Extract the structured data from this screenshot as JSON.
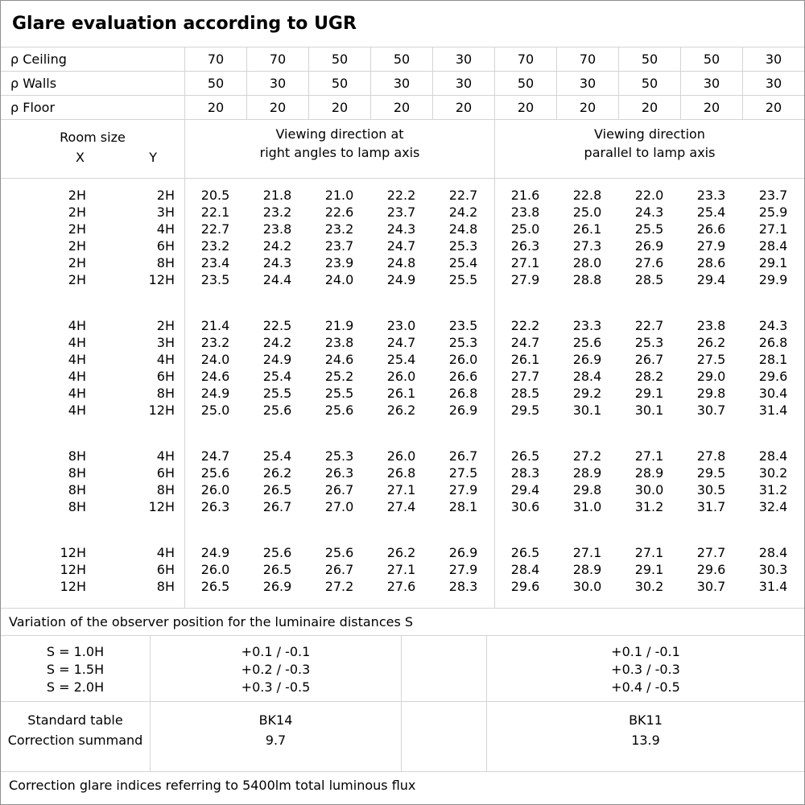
{
  "title": "Glare evaluation according to UGR",
  "params": {
    "rows": [
      {
        "label": "ρ Ceiling",
        "values": [
          "70",
          "70",
          "50",
          "50",
          "30",
          "70",
          "70",
          "50",
          "50",
          "30"
        ]
      },
      {
        "label": "ρ Walls",
        "values": [
          "50",
          "30",
          "50",
          "30",
          "30",
          "50",
          "30",
          "50",
          "30",
          "30"
        ]
      },
      {
        "label": "ρ Floor",
        "values": [
          "20",
          "20",
          "20",
          "20",
          "20",
          "20",
          "20",
          "20",
          "20",
          "20"
        ]
      }
    ]
  },
  "header": {
    "room_size_label": "Room size",
    "x_label": "X",
    "y_label": "Y",
    "section_left": [
      "Viewing direction at",
      "right angles to lamp axis"
    ],
    "section_right": [
      "Viewing direction",
      "parallel to lamp axis"
    ]
  },
  "chart_data": {
    "type": "table",
    "title": "Glare evaluation according to UGR",
    "row_key": [
      "Room size X",
      "Room size Y"
    ],
    "column_groups": [
      "Viewing direction at right angles to lamp axis",
      "Viewing direction parallel to lamp axis"
    ],
    "reflectances": {
      "ceiling": [
        "70",
        "70",
        "50",
        "50",
        "30"
      ],
      "walls": [
        "50",
        "30",
        "50",
        "30",
        "30"
      ],
      "floor": [
        "20",
        "20",
        "20",
        "20",
        "20"
      ]
    },
    "groups": [
      {
        "rows": [
          {
            "x": "2H",
            "y": "2H",
            "right_angle": [
              "20.5",
              "21.8",
              "21.0",
              "22.2",
              "22.7"
            ],
            "parallel": [
              "21.6",
              "22.8",
              "22.0",
              "23.3",
              "23.7"
            ]
          },
          {
            "x": "2H",
            "y": "3H",
            "right_angle": [
              "22.1",
              "23.2",
              "22.6",
              "23.7",
              "24.2"
            ],
            "parallel": [
              "23.8",
              "25.0",
              "24.3",
              "25.4",
              "25.9"
            ]
          },
          {
            "x": "2H",
            "y": "4H",
            "right_angle": [
              "22.7",
              "23.8",
              "23.2",
              "24.3",
              "24.8"
            ],
            "parallel": [
              "25.0",
              "26.1",
              "25.5",
              "26.6",
              "27.1"
            ]
          },
          {
            "x": "2H",
            "y": "6H",
            "right_angle": [
              "23.2",
              "24.2",
              "23.7",
              "24.7",
              "25.3"
            ],
            "parallel": [
              "26.3",
              "27.3",
              "26.9",
              "27.9",
              "28.4"
            ]
          },
          {
            "x": "2H",
            "y": "8H",
            "right_angle": [
              "23.4",
              "24.3",
              "23.9",
              "24.8",
              "25.4"
            ],
            "parallel": [
              "27.1",
              "28.0",
              "27.6",
              "28.6",
              "29.1"
            ]
          },
          {
            "x": "2H",
            "y": "12H",
            "right_angle": [
              "23.5",
              "24.4",
              "24.0",
              "24.9",
              "25.5"
            ],
            "parallel": [
              "27.9",
              "28.8",
              "28.5",
              "29.4",
              "29.9"
            ]
          }
        ]
      },
      {
        "rows": [
          {
            "x": "4H",
            "y": "2H",
            "right_angle": [
              "21.4",
              "22.5",
              "21.9",
              "23.0",
              "23.5"
            ],
            "parallel": [
              "22.2",
              "23.3",
              "22.7",
              "23.8",
              "24.3"
            ]
          },
          {
            "x": "4H",
            "y": "3H",
            "right_angle": [
              "23.2",
              "24.2",
              "23.8",
              "24.7",
              "25.3"
            ],
            "parallel": [
              "24.7",
              "25.6",
              "25.3",
              "26.2",
              "26.8"
            ]
          },
          {
            "x": "4H",
            "y": "4H",
            "right_angle": [
              "24.0",
              "24.9",
              "24.6",
              "25.4",
              "26.0"
            ],
            "parallel": [
              "26.1",
              "26.9",
              "26.7",
              "27.5",
              "28.1"
            ]
          },
          {
            "x": "4H",
            "y": "6H",
            "right_angle": [
              "24.6",
              "25.4",
              "25.2",
              "26.0",
              "26.6"
            ],
            "parallel": [
              "27.7",
              "28.4",
              "28.2",
              "29.0",
              "29.6"
            ]
          },
          {
            "x": "4H",
            "y": "8H",
            "right_angle": [
              "24.9",
              "25.5",
              "25.5",
              "26.1",
              "26.8"
            ],
            "parallel": [
              "28.5",
              "29.2",
              "29.1",
              "29.8",
              "30.4"
            ]
          },
          {
            "x": "4H",
            "y": "12H",
            "right_angle": [
              "25.0",
              "25.6",
              "25.6",
              "26.2",
              "26.9"
            ],
            "parallel": [
              "29.5",
              "30.1",
              "30.1",
              "30.7",
              "31.4"
            ]
          }
        ]
      },
      {
        "rows": [
          {
            "x": "8H",
            "y": "4H",
            "right_angle": [
              "24.7",
              "25.4",
              "25.3",
              "26.0",
              "26.7"
            ],
            "parallel": [
              "26.5",
              "27.2",
              "27.1",
              "27.8",
              "28.4"
            ]
          },
          {
            "x": "8H",
            "y": "6H",
            "right_angle": [
              "25.6",
              "26.2",
              "26.3",
              "26.8",
              "27.5"
            ],
            "parallel": [
              "28.3",
              "28.9",
              "28.9",
              "29.5",
              "30.2"
            ]
          },
          {
            "x": "8H",
            "y": "8H",
            "right_angle": [
              "26.0",
              "26.5",
              "26.7",
              "27.1",
              "27.9"
            ],
            "parallel": [
              "29.4",
              "29.8",
              "30.0",
              "30.5",
              "31.2"
            ]
          },
          {
            "x": "8H",
            "y": "12H",
            "right_angle": [
              "26.3",
              "26.7",
              "27.0",
              "27.4",
              "28.1"
            ],
            "parallel": [
              "30.6",
              "31.0",
              "31.2",
              "31.7",
              "32.4"
            ]
          }
        ]
      },
      {
        "rows": [
          {
            "x": "12H",
            "y": "4H",
            "right_angle": [
              "24.9",
              "25.6",
              "25.6",
              "26.2",
              "26.9"
            ],
            "parallel": [
              "26.5",
              "27.1",
              "27.1",
              "27.7",
              "28.4"
            ]
          },
          {
            "x": "12H",
            "y": "6H",
            "right_angle": [
              "26.0",
              "26.5",
              "26.7",
              "27.1",
              "27.9"
            ],
            "parallel": [
              "28.4",
              "28.9",
              "29.1",
              "29.6",
              "30.3"
            ]
          },
          {
            "x": "12H",
            "y": "8H",
            "right_angle": [
              "26.5",
              "26.9",
              "27.2",
              "27.6",
              "28.3"
            ],
            "parallel": [
              "29.6",
              "30.0",
              "30.2",
              "30.7",
              "31.4"
            ]
          }
        ]
      }
    ]
  },
  "variation_note": "Variation of the observer position for the luminaire distances S",
  "s_block": {
    "labels": [
      "S = 1.0H",
      "S = 1.5H",
      "S = 2.0H"
    ],
    "right_angle": [
      "+0.1 / -0.1",
      "+0.2 / -0.3",
      "+0.3 / -0.5"
    ],
    "parallel": [
      "+0.1 / -0.1",
      "+0.3 / -0.3",
      "+0.4 / -0.5"
    ]
  },
  "standard_block": {
    "labels": [
      "Standard table",
      "Correction summand"
    ],
    "right_angle": [
      "BK14",
      "9.7"
    ],
    "parallel": [
      "BK11",
      "13.9"
    ]
  },
  "footer_note": "Correction glare indices referring to 5400lm total luminous flux"
}
